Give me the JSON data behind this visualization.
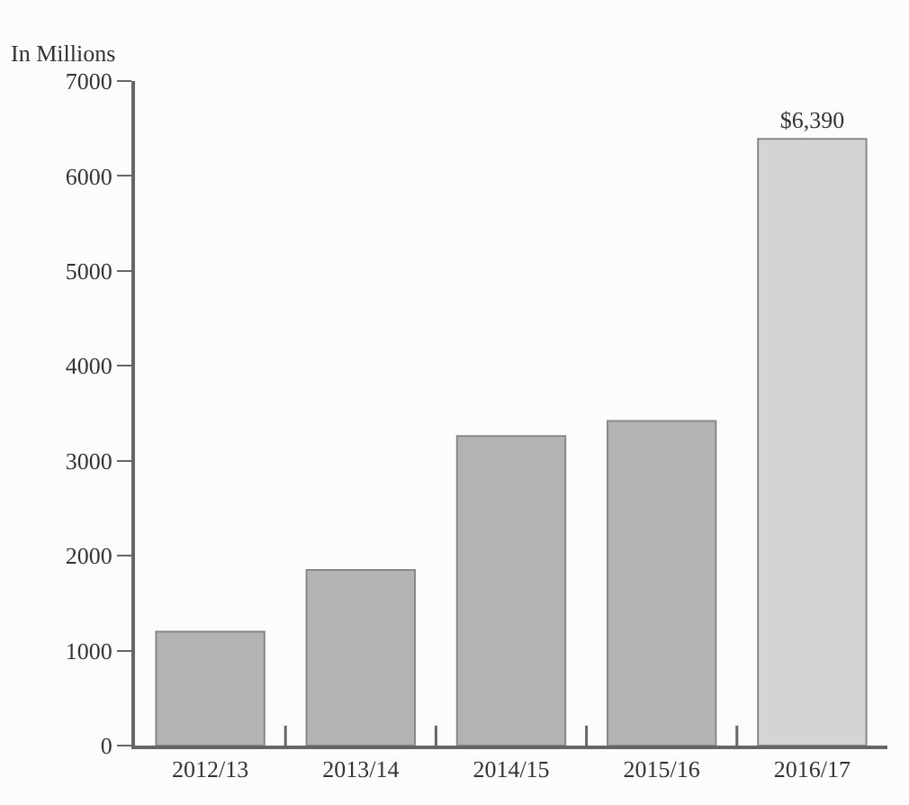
{
  "chart_data": {
    "type": "bar",
    "ylabel": "In Millions",
    "categories": [
      "2012/13",
      "2013/14",
      "2014/15",
      "2015/16",
      "2016/17"
    ],
    "values": [
      1200,
      1850,
      3260,
      3420,
      6390
    ],
    "colors": [
      "#b3b3b3",
      "#b3b3b3",
      "#b3b3b3",
      "#b3b3b3",
      "#d4d4d4"
    ],
    "value_labels": [
      null,
      null,
      null,
      null,
      "$6,390"
    ],
    "ylim": [
      0,
      7000
    ],
    "yticks": [
      0,
      1000,
      2000,
      3000,
      4000,
      5000,
      6000,
      7000
    ]
  }
}
